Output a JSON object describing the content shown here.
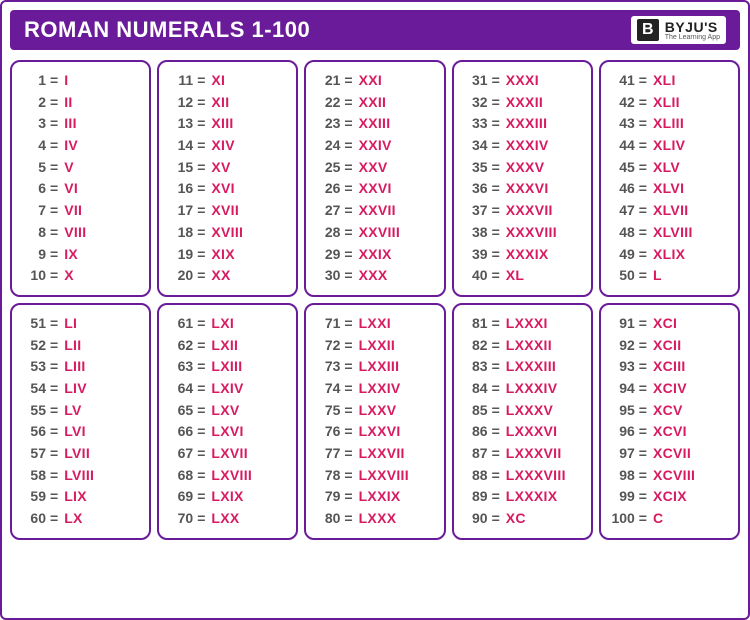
{
  "header": {
    "title": "ROMAN NUMERALS 1-100",
    "logo": {
      "mark": "B",
      "name": "BYJU'S",
      "tagline": "The Learning App"
    }
  },
  "style": {
    "type": "table",
    "border_color": "#6a1b9a",
    "header_bg": "#6a1b9a",
    "header_text_color": "#ffffff",
    "number_color": "#555555",
    "roman_color": "#d81b60",
    "box_border_radius": 10,
    "title_fontsize": 22,
    "cell_fontsize": 14,
    "grid_columns": 5,
    "grid_rows": 2,
    "items_per_box": 10
  },
  "boxes": [
    {
      "items": [
        {
          "n": "1",
          "r": "I"
        },
        {
          "n": "2",
          "r": "II"
        },
        {
          "n": "3",
          "r": "III"
        },
        {
          "n": "4",
          "r": "IV"
        },
        {
          "n": "5",
          "r": "V"
        },
        {
          "n": "6",
          "r": "VI"
        },
        {
          "n": "7",
          "r": "VII"
        },
        {
          "n": "8",
          "r": "VIII"
        },
        {
          "n": "9",
          "r": "IX"
        },
        {
          "n": "10",
          "r": "X"
        }
      ]
    },
    {
      "items": [
        {
          "n": "11",
          "r": "XI"
        },
        {
          "n": "12",
          "r": "XII"
        },
        {
          "n": "13",
          "r": "XIII"
        },
        {
          "n": "14",
          "r": "XIV"
        },
        {
          "n": "15",
          "r": "XV"
        },
        {
          "n": "16",
          "r": "XVI"
        },
        {
          "n": "17",
          "r": "XVII"
        },
        {
          "n": "18",
          "r": "XVIII"
        },
        {
          "n": "19",
          "r": "XIX"
        },
        {
          "n": "20",
          "r": "XX"
        }
      ]
    },
    {
      "items": [
        {
          "n": "21",
          "r": "XXI"
        },
        {
          "n": "22",
          "r": "XXII"
        },
        {
          "n": "23",
          "r": "XXIII"
        },
        {
          "n": "24",
          "r": "XXIV"
        },
        {
          "n": "25",
          "r": "XXV"
        },
        {
          "n": "26",
          "r": "XXVI"
        },
        {
          "n": "27",
          "r": "XXVII"
        },
        {
          "n": "28",
          "r": "XXVIII"
        },
        {
          "n": "29",
          "r": "XXIX"
        },
        {
          "n": "30",
          "r": "XXX"
        }
      ]
    },
    {
      "items": [
        {
          "n": "31",
          "r": "XXXI"
        },
        {
          "n": "32",
          "r": "XXXII"
        },
        {
          "n": "33",
          "r": "XXXIII"
        },
        {
          "n": "34",
          "r": "XXXIV"
        },
        {
          "n": "35",
          "r": "XXXV"
        },
        {
          "n": "36",
          "r": "XXXVI"
        },
        {
          "n": "37",
          "r": "XXXVII"
        },
        {
          "n": "38",
          "r": "XXXVIII"
        },
        {
          "n": "39",
          "r": "XXXIX"
        },
        {
          "n": "40",
          "r": "XL"
        }
      ]
    },
    {
      "items": [
        {
          "n": "41",
          "r": "XLI"
        },
        {
          "n": "42",
          "r": "XLII"
        },
        {
          "n": "43",
          "r": "XLIII"
        },
        {
          "n": "44",
          "r": "XLIV"
        },
        {
          "n": "45",
          "r": "XLV"
        },
        {
          "n": "46",
          "r": "XLVI"
        },
        {
          "n": "47",
          "r": "XLVII"
        },
        {
          "n": "48",
          "r": "XLVIII"
        },
        {
          "n": "49",
          "r": "XLIX"
        },
        {
          "n": "50",
          "r": "L"
        }
      ]
    },
    {
      "items": [
        {
          "n": "51",
          "r": "LI"
        },
        {
          "n": "52",
          "r": "LII"
        },
        {
          "n": "53",
          "r": "LIII"
        },
        {
          "n": "54",
          "r": "LIV"
        },
        {
          "n": "55",
          "r": "LV"
        },
        {
          "n": "56",
          "r": "LVI"
        },
        {
          "n": "57",
          "r": "LVII"
        },
        {
          "n": "58",
          "r": "LVIII"
        },
        {
          "n": "59",
          "r": "LIX"
        },
        {
          "n": "60",
          "r": "LX"
        }
      ]
    },
    {
      "items": [
        {
          "n": "61",
          "r": "LXI"
        },
        {
          "n": "62",
          "r": "LXII"
        },
        {
          "n": "63",
          "r": "LXIII"
        },
        {
          "n": "64",
          "r": "LXIV"
        },
        {
          "n": "65",
          "r": "LXV"
        },
        {
          "n": "66",
          "r": "LXVI"
        },
        {
          "n": "67",
          "r": "LXVII"
        },
        {
          "n": "68",
          "r": "LXVIII"
        },
        {
          "n": "69",
          "r": "LXIX"
        },
        {
          "n": "70",
          "r": "LXX"
        }
      ]
    },
    {
      "items": [
        {
          "n": "71",
          "r": "LXXI"
        },
        {
          "n": "72",
          "r": "LXXII"
        },
        {
          "n": "73",
          "r": "LXXIII"
        },
        {
          "n": "74",
          "r": "LXXIV"
        },
        {
          "n": "75",
          "r": "LXXV"
        },
        {
          "n": "76",
          "r": "LXXVI"
        },
        {
          "n": "77",
          "r": "LXXVII"
        },
        {
          "n": "78",
          "r": "LXXVIII"
        },
        {
          "n": "79",
          "r": "LXXIX"
        },
        {
          "n": "80",
          "r": "LXXX"
        }
      ]
    },
    {
      "items": [
        {
          "n": "81",
          "r": "LXXXI"
        },
        {
          "n": "82",
          "r": "LXXXII"
        },
        {
          "n": "83",
          "r": "LXXXIII"
        },
        {
          "n": "84",
          "r": "LXXXIV"
        },
        {
          "n": "85",
          "r": "LXXXV"
        },
        {
          "n": "86",
          "r": "LXXXVI"
        },
        {
          "n": "87",
          "r": "LXXXVII"
        },
        {
          "n": "88",
          "r": "LXXXVIII"
        },
        {
          "n": "89",
          "r": "LXXXIX"
        },
        {
          "n": "90",
          "r": "XC"
        }
      ]
    },
    {
      "items": [
        {
          "n": "91",
          "r": "XCI"
        },
        {
          "n": "92",
          "r": "XCII"
        },
        {
          "n": "93",
          "r": "XCIII"
        },
        {
          "n": "94",
          "r": "XCIV"
        },
        {
          "n": "95",
          "r": "XCV"
        },
        {
          "n": "96",
          "r": "XCVI"
        },
        {
          "n": "97",
          "r": "XCVII"
        },
        {
          "n": "98",
          "r": "XCVIII"
        },
        {
          "n": "99",
          "r": "XCIX"
        },
        {
          "n": "100",
          "r": "C"
        }
      ]
    }
  ]
}
